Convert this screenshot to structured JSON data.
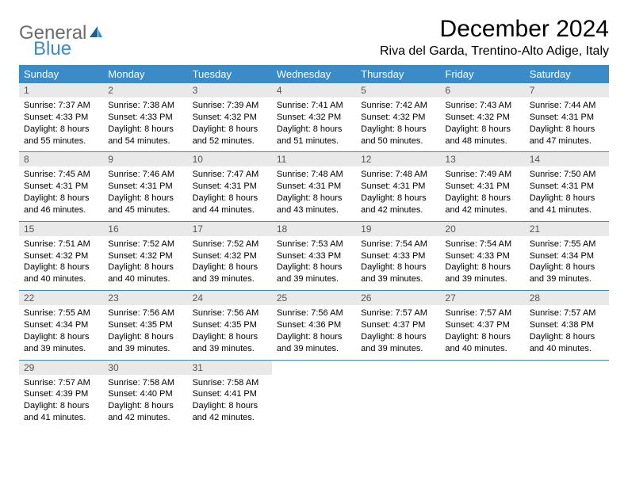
{
  "logo": {
    "gen": "General",
    "blue": "Blue"
  },
  "title": "December 2024",
  "location": "Riva del Garda, Trentino-Alto Adige, Italy",
  "colors": {
    "header_bg": "#3b8bc9",
    "header_fg": "#ffffff",
    "daynum_bg": "#e9e9e9",
    "row_border": "#3b8bc9"
  },
  "weekdays": [
    "Sunday",
    "Monday",
    "Tuesday",
    "Wednesday",
    "Thursday",
    "Friday",
    "Saturday"
  ],
  "weeks": [
    [
      {
        "n": "1",
        "sr": "Sunrise: 7:37 AM",
        "ss": "Sunset: 4:33 PM",
        "d1": "Daylight: 8 hours",
        "d2": "and 55 minutes."
      },
      {
        "n": "2",
        "sr": "Sunrise: 7:38 AM",
        "ss": "Sunset: 4:33 PM",
        "d1": "Daylight: 8 hours",
        "d2": "and 54 minutes."
      },
      {
        "n": "3",
        "sr": "Sunrise: 7:39 AM",
        "ss": "Sunset: 4:32 PM",
        "d1": "Daylight: 8 hours",
        "d2": "and 52 minutes."
      },
      {
        "n": "4",
        "sr": "Sunrise: 7:41 AM",
        "ss": "Sunset: 4:32 PM",
        "d1": "Daylight: 8 hours",
        "d2": "and 51 minutes."
      },
      {
        "n": "5",
        "sr": "Sunrise: 7:42 AM",
        "ss": "Sunset: 4:32 PM",
        "d1": "Daylight: 8 hours",
        "d2": "and 50 minutes."
      },
      {
        "n": "6",
        "sr": "Sunrise: 7:43 AM",
        "ss": "Sunset: 4:32 PM",
        "d1": "Daylight: 8 hours",
        "d2": "and 48 minutes."
      },
      {
        "n": "7",
        "sr": "Sunrise: 7:44 AM",
        "ss": "Sunset: 4:31 PM",
        "d1": "Daylight: 8 hours",
        "d2": "and 47 minutes."
      }
    ],
    [
      {
        "n": "8",
        "sr": "Sunrise: 7:45 AM",
        "ss": "Sunset: 4:31 PM",
        "d1": "Daylight: 8 hours",
        "d2": "and 46 minutes."
      },
      {
        "n": "9",
        "sr": "Sunrise: 7:46 AM",
        "ss": "Sunset: 4:31 PM",
        "d1": "Daylight: 8 hours",
        "d2": "and 45 minutes."
      },
      {
        "n": "10",
        "sr": "Sunrise: 7:47 AM",
        "ss": "Sunset: 4:31 PM",
        "d1": "Daylight: 8 hours",
        "d2": "and 44 minutes."
      },
      {
        "n": "11",
        "sr": "Sunrise: 7:48 AM",
        "ss": "Sunset: 4:31 PM",
        "d1": "Daylight: 8 hours",
        "d2": "and 43 minutes."
      },
      {
        "n": "12",
        "sr": "Sunrise: 7:48 AM",
        "ss": "Sunset: 4:31 PM",
        "d1": "Daylight: 8 hours",
        "d2": "and 42 minutes."
      },
      {
        "n": "13",
        "sr": "Sunrise: 7:49 AM",
        "ss": "Sunset: 4:31 PM",
        "d1": "Daylight: 8 hours",
        "d2": "and 42 minutes."
      },
      {
        "n": "14",
        "sr": "Sunrise: 7:50 AM",
        "ss": "Sunset: 4:31 PM",
        "d1": "Daylight: 8 hours",
        "d2": "and 41 minutes."
      }
    ],
    [
      {
        "n": "15",
        "sr": "Sunrise: 7:51 AM",
        "ss": "Sunset: 4:32 PM",
        "d1": "Daylight: 8 hours",
        "d2": "and 40 minutes."
      },
      {
        "n": "16",
        "sr": "Sunrise: 7:52 AM",
        "ss": "Sunset: 4:32 PM",
        "d1": "Daylight: 8 hours",
        "d2": "and 40 minutes."
      },
      {
        "n": "17",
        "sr": "Sunrise: 7:52 AM",
        "ss": "Sunset: 4:32 PM",
        "d1": "Daylight: 8 hours",
        "d2": "and 39 minutes."
      },
      {
        "n": "18",
        "sr": "Sunrise: 7:53 AM",
        "ss": "Sunset: 4:33 PM",
        "d1": "Daylight: 8 hours",
        "d2": "and 39 minutes."
      },
      {
        "n": "19",
        "sr": "Sunrise: 7:54 AM",
        "ss": "Sunset: 4:33 PM",
        "d1": "Daylight: 8 hours",
        "d2": "and 39 minutes."
      },
      {
        "n": "20",
        "sr": "Sunrise: 7:54 AM",
        "ss": "Sunset: 4:33 PM",
        "d1": "Daylight: 8 hours",
        "d2": "and 39 minutes."
      },
      {
        "n": "21",
        "sr": "Sunrise: 7:55 AM",
        "ss": "Sunset: 4:34 PM",
        "d1": "Daylight: 8 hours",
        "d2": "and 39 minutes."
      }
    ],
    [
      {
        "n": "22",
        "sr": "Sunrise: 7:55 AM",
        "ss": "Sunset: 4:34 PM",
        "d1": "Daylight: 8 hours",
        "d2": "and 39 minutes."
      },
      {
        "n": "23",
        "sr": "Sunrise: 7:56 AM",
        "ss": "Sunset: 4:35 PM",
        "d1": "Daylight: 8 hours",
        "d2": "and 39 minutes."
      },
      {
        "n": "24",
        "sr": "Sunrise: 7:56 AM",
        "ss": "Sunset: 4:35 PM",
        "d1": "Daylight: 8 hours",
        "d2": "and 39 minutes."
      },
      {
        "n": "25",
        "sr": "Sunrise: 7:56 AM",
        "ss": "Sunset: 4:36 PM",
        "d1": "Daylight: 8 hours",
        "d2": "and 39 minutes."
      },
      {
        "n": "26",
        "sr": "Sunrise: 7:57 AM",
        "ss": "Sunset: 4:37 PM",
        "d1": "Daylight: 8 hours",
        "d2": "and 39 minutes."
      },
      {
        "n": "27",
        "sr": "Sunrise: 7:57 AM",
        "ss": "Sunset: 4:37 PM",
        "d1": "Daylight: 8 hours",
        "d2": "and 40 minutes."
      },
      {
        "n": "28",
        "sr": "Sunrise: 7:57 AM",
        "ss": "Sunset: 4:38 PM",
        "d1": "Daylight: 8 hours",
        "d2": "and 40 minutes."
      }
    ],
    [
      {
        "n": "29",
        "sr": "Sunrise: 7:57 AM",
        "ss": "Sunset: 4:39 PM",
        "d1": "Daylight: 8 hours",
        "d2": "and 41 minutes."
      },
      {
        "n": "30",
        "sr": "Sunrise: 7:58 AM",
        "ss": "Sunset: 4:40 PM",
        "d1": "Daylight: 8 hours",
        "d2": "and 42 minutes."
      },
      {
        "n": "31",
        "sr": "Sunrise: 7:58 AM",
        "ss": "Sunset: 4:41 PM",
        "d1": "Daylight: 8 hours",
        "d2": "and 42 minutes."
      },
      null,
      null,
      null,
      null
    ]
  ]
}
